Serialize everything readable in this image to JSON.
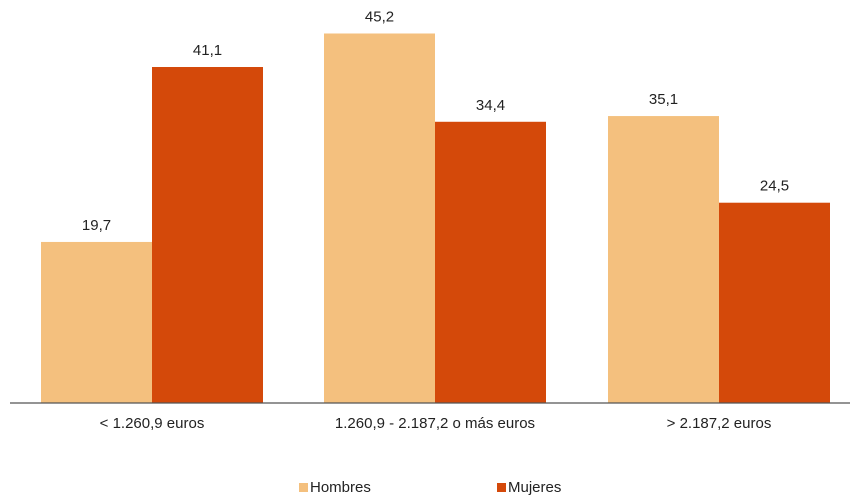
{
  "chart_data": {
    "type": "bar",
    "categories": [
      "< 1.260,9 euros",
      "1.260,9 - 2.187,2 o más euros",
      "> 2.187,2 euros"
    ],
    "series": [
      {
        "name": "Hombres",
        "values": [
          19.7,
          45.2,
          35.1
        ],
        "labels": [
          "19,7",
          "45,2",
          "35,1"
        ],
        "color": "#F4C07E"
      },
      {
        "name": "Mujeres",
        "values": [
          41.1,
          34.4,
          24.5
        ],
        "labels": [
          "41,1",
          "34,4",
          "24,5"
        ],
        "color": "#D4490A"
      }
    ],
    "ylim": [
      0,
      50
    ],
    "grid": false,
    "legend_position": "bottom",
    "axis_color": "#555555"
  }
}
